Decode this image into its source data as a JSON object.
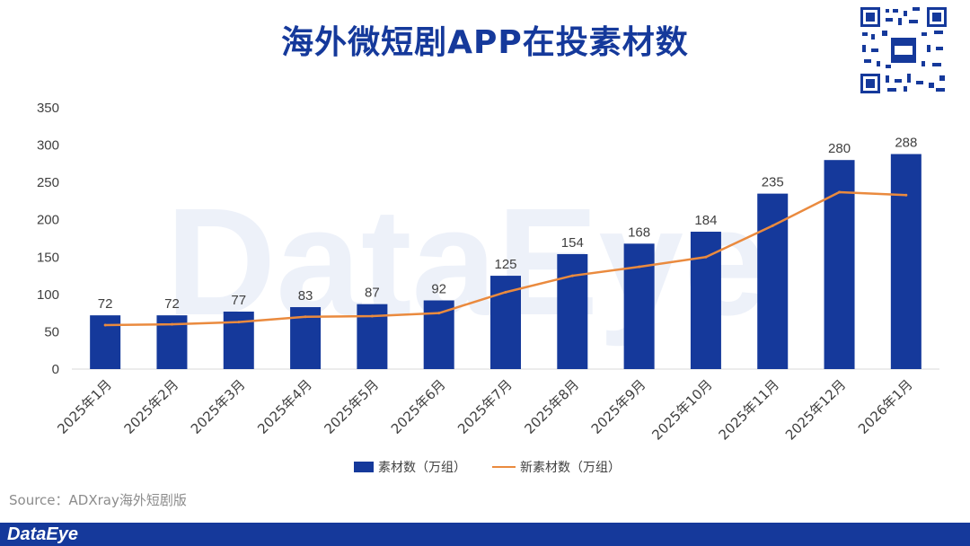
{
  "title": "海外微短剧APP在投素材数",
  "source": "Source：ADXray海外短剧版",
  "brand": "DataEye",
  "watermark": "DataEye",
  "colors": {
    "bar": "#15399b",
    "line": "#ea8a3e",
    "title": "#15399b",
    "footer": "#15399b"
  },
  "legend": {
    "bar_label": "素材数（万组）",
    "line_label": "新素材数（万组）"
  },
  "chart_data": {
    "type": "bar",
    "categories": [
      "2025年1月",
      "2025年2月",
      "2025年3月",
      "2025年4月",
      "2025年5月",
      "2025年6月",
      "2025年7月",
      "2025年8月",
      "2025年9月",
      "2025年10月",
      "2025年11月",
      "2025年12月",
      "2026年1月"
    ],
    "series": [
      {
        "name": "素材数（万组）",
        "type": "bar",
        "values": [
          72,
          72,
          77,
          83,
          87,
          92,
          125,
          154,
          168,
          184,
          235,
          280,
          288
        ]
      },
      {
        "name": "新素材数（万组）",
        "type": "line",
        "values": [
          59,
          60,
          63,
          70,
          71,
          75,
          103,
          125,
          137,
          150,
          192,
          237,
          233
        ]
      }
    ],
    "ylim": [
      0,
      350
    ],
    "yticks": [
      0,
      50,
      100,
      150,
      200,
      250,
      300,
      350
    ],
    "grid": false,
    "legend_position": "bottom",
    "xlabel": "",
    "ylabel": ""
  }
}
